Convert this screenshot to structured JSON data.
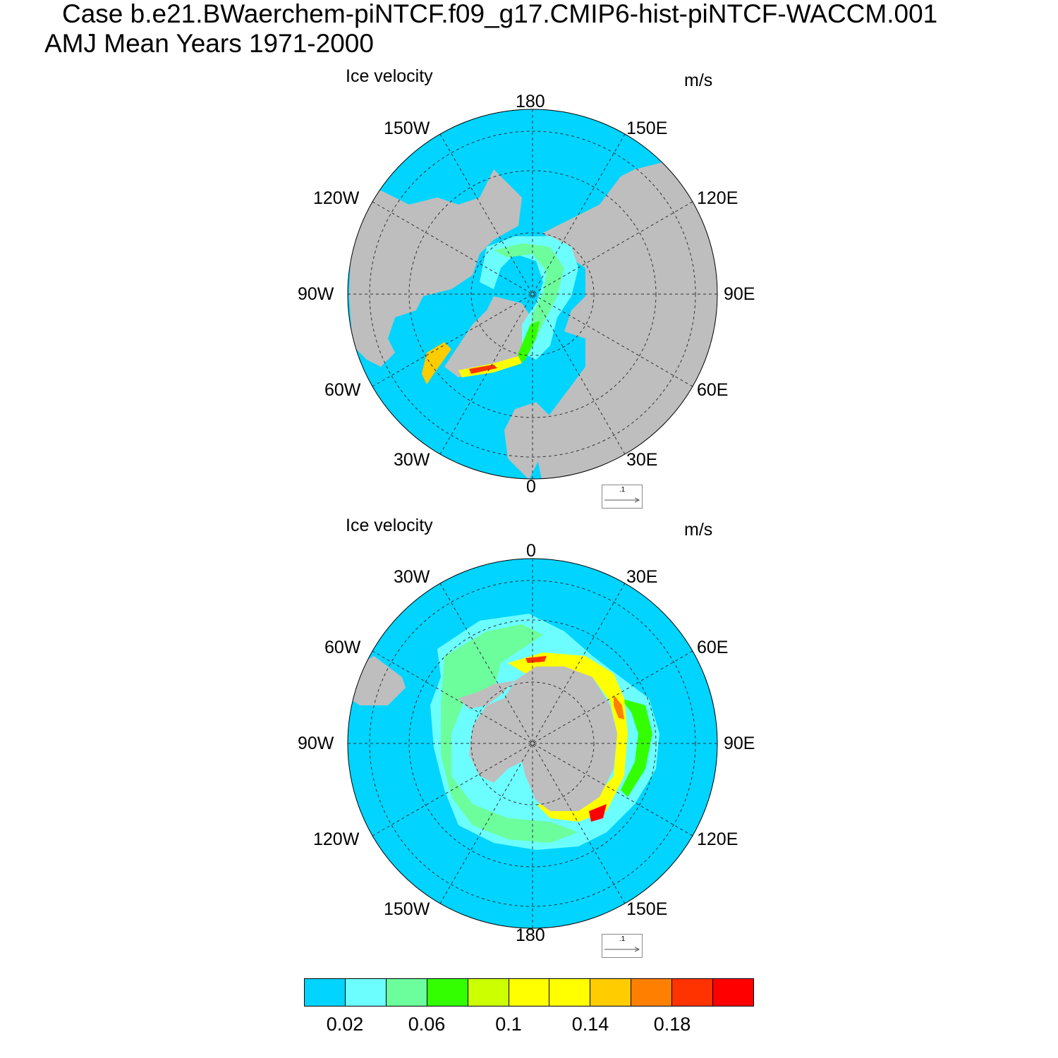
{
  "header": {
    "case_line": "Case b.e21.BWaerchem-piNTCF.f09_g17.CMIP6-hist-piNTCF-WACCM.001",
    "period_line": "AMJ Mean   Years 1971-2000"
  },
  "panels": [
    {
      "hemisphere": "north",
      "title": "Ice velocity",
      "units": "m/s",
      "ref_vector_label": ".1",
      "lon_labels": {
        "top": "180",
        "top_left": "150W",
        "top_right": "150E",
        "upper_left": "120W",
        "upper_right": "120E",
        "left": "90W",
        "right": "90E",
        "lower_left": "60W",
        "lower_right": "60E",
        "bottom_left": "30W",
        "bottom_right": "30E",
        "bottom": "0"
      }
    },
    {
      "hemisphere": "south",
      "title": "Ice velocity",
      "units": "m/s",
      "ref_vector_label": ".1",
      "lon_labels": {
        "top": "0",
        "top_left": "30W",
        "top_right": "30E",
        "upper_left": "60W",
        "upper_right": "60E",
        "left": "90W",
        "right": "90E",
        "lower_left": "120W",
        "lower_right": "120E",
        "bottom_left": "150W",
        "bottom_right": "150E",
        "bottom": "180"
      }
    }
  ],
  "colorbar": {
    "colors": [
      "#00d4ff",
      "#6cfeff",
      "#6cfe9c",
      "#33ff00",
      "#ccff00",
      "#ffff00",
      "#ffff00",
      "#ffcc00",
      "#ff8000",
      "#ff3300",
      "#ff0000"
    ],
    "labels": [
      "0.02",
      "0.06",
      "0.1",
      "0.14",
      "0.18"
    ]
  },
  "colors": {
    "ocean": "#00d4ff",
    "land": "#bebebe",
    "no_ice_shelf": "#ffffff"
  }
}
